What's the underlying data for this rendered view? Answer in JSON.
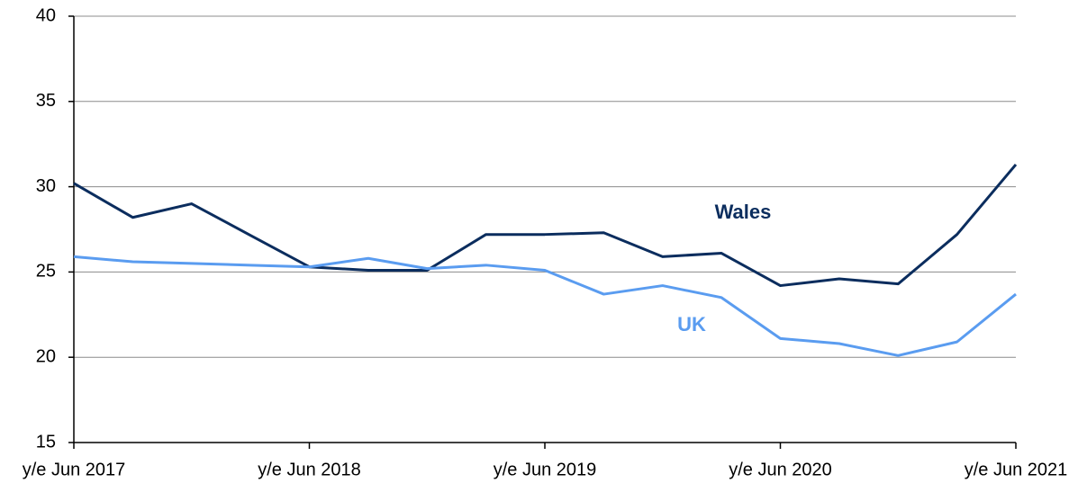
{
  "chart_data": {
    "type": "line",
    "categories": [
      "y/e Jun 2017",
      null,
      null,
      null,
      "y/e Jun 2018",
      null,
      null,
      null,
      "y/e Jun 2019",
      null,
      null,
      null,
      "y/e Jun 2020",
      null,
      null,
      null,
      "y/e Jun 2021"
    ],
    "series": [
      {
        "name": "Wales",
        "color": "#0b2d5e",
        "values": [
          30.2,
          28.2,
          29.0,
          27.15,
          25.3,
          25.1,
          25.1,
          27.2,
          27.2,
          27.3,
          25.9,
          26.1,
          24.2,
          24.6,
          24.3,
          27.2,
          31.3
        ]
      },
      {
        "name": "UK",
        "color": "#5a9cf0",
        "values": [
          25.9,
          25.6,
          25.5,
          25.4,
          25.3,
          25.8,
          25.2,
          25.4,
          25.1,
          23.7,
          24.2,
          23.5,
          21.1,
          20.8,
          20.1,
          20.9,
          23.7
        ]
      }
    ],
    "ylim": [
      15,
      40
    ],
    "yticks": [
      15,
      20,
      25,
      30,
      35,
      40
    ],
    "grid": true
  }
}
